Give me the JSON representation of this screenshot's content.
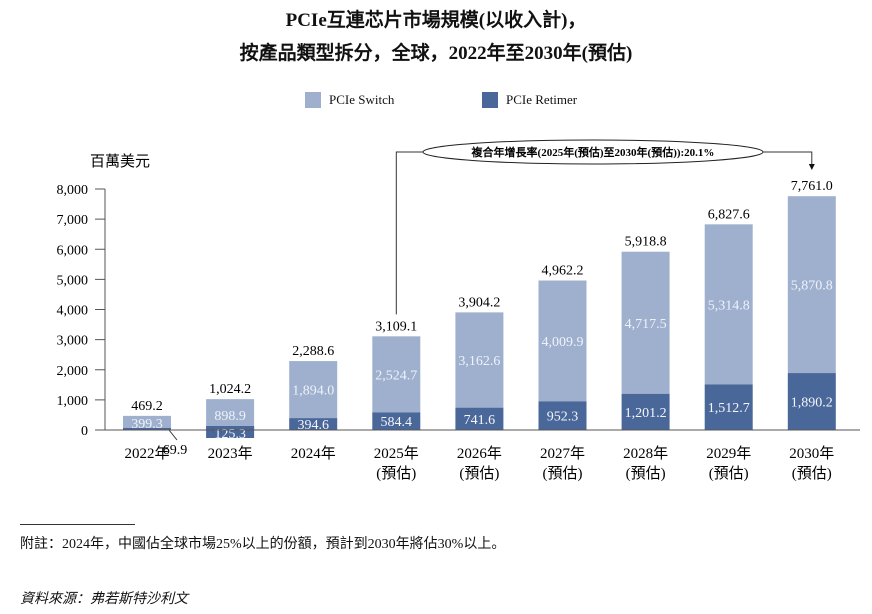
{
  "chart_data": {
    "type": "bar",
    "stacked": true,
    "title": "PCIe互連芯片市場規模(以收入計)，",
    "subtitle": "按產品類型拆分，全球，2022年至2030年(預估)",
    "ylabel": "百萬美元",
    "ylim": [
      0,
      8000
    ],
    "yticks": [
      "0",
      "1,000",
      "2,000",
      "3,000",
      "4,000",
      "5,000",
      "6,000",
      "7,000",
      "8,000"
    ],
    "ytick_values": [
      0,
      1000,
      2000,
      3000,
      4000,
      5000,
      6000,
      7000,
      8000
    ],
    "categories": [
      [
        "2022年",
        ""
      ],
      [
        "2023年",
        ""
      ],
      [
        "2024年",
        ""
      ],
      [
        "2025年",
        "(預估)"
      ],
      [
        "2026年",
        "(預估)"
      ],
      [
        "2027年",
        "(預估)"
      ],
      [
        "2028年",
        "(預估)"
      ],
      [
        "2029年",
        "(預估)"
      ],
      [
        "2030年",
        "(預估)"
      ]
    ],
    "series": [
      {
        "name": "PCIe Retimer",
        "color": "#4a6799",
        "values": [
          69.9,
          125.3,
          394.6,
          584.4,
          741.6,
          952.3,
          1201.2,
          1512.7,
          1890.2
        ],
        "labels": [
          "69.9",
          "125.3",
          "394.6",
          "584.4",
          "741.6",
          "952.3",
          "1,201.2",
          "1,512.7",
          "1,890.2"
        ]
      },
      {
        "name": "PCIe Switch",
        "color": "#9fb0cf",
        "values": [
          399.3,
          898.9,
          1894.0,
          2524.7,
          3162.6,
          4009.9,
          4717.5,
          5314.8,
          5870.8
        ],
        "labels": [
          "399.3",
          "898.9",
          "1,894.0",
          "2,524.7",
          "3,162.6",
          "4,009.9",
          "4,717.5",
          "5,314.8",
          "5,870.8"
        ]
      }
    ],
    "totals": [
      "469.2",
      "1,024.2",
      "2,288.6",
      "3,109.1",
      "3,904.2",
      "4,962.2",
      "5,918.8",
      "6,827.6",
      "7,761.0"
    ],
    "totals_values": [
      469.2,
      1024.2,
      2288.6,
      3109.1,
      3904.2,
      4962.2,
      5918.8,
      6827.6,
      7761.0
    ],
    "annotation": "複合年增長率(2025年(預估)至2030年(預估)):20.1%",
    "legend_position": "top-center"
  },
  "notes": {
    "footnote": "附註：2024年，中國佔全球市場25%以上的份額，預計到2030年將佔30%以上。",
    "source": "資料來源：弗若斯特沙利文"
  }
}
